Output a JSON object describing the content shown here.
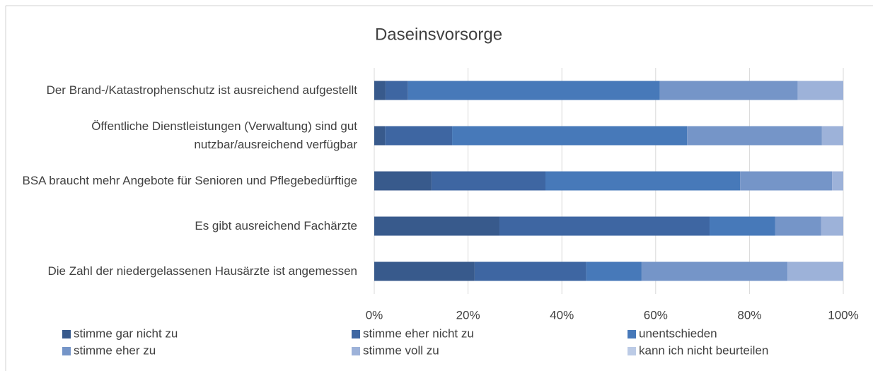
{
  "chart_data": {
    "type": "bar",
    "orientation": "horizontal",
    "stacked": true,
    "title": "Daseinsvorsorge",
    "categories": [
      "Der Brand-/Katastrophenschutz ist ausreichend aufgestellt",
      "Öffentliche Dienstleistungen (Verwaltung) sind gut nutzbar/ausreichend verfügbar",
      "BSA braucht mehr Angebote für Senioren und Pflegebedürftige",
      "Es gibt ausreichend Fachärzte",
      "Die Zahl der niedergelassenen Hausärzte ist angemessen"
    ],
    "series": [
      {
        "name": "stimme gar nicht zu",
        "color": "#385a8c",
        "values": [
          2.4,
          2.3,
          12.2,
          26.7,
          21.4
        ]
      },
      {
        "name": "stimme eher nicht zu",
        "color": "#3e66a2",
        "values": [
          4.8,
          14.3,
          24.3,
          44.8,
          23.8
        ]
      },
      {
        "name": "unentschieden",
        "color": "#4779b9",
        "values": [
          53.7,
          50.1,
          41.5,
          14.0,
          11.8
        ]
      },
      {
        "name": "stimme eher zu",
        "color": "#7595c8",
        "values": [
          29.4,
          28.7,
          19.6,
          9.8,
          31.1
        ]
      },
      {
        "name": "stimme voll zu",
        "color": "#9db2d9",
        "values": [
          9.7,
          4.6,
          2.4,
          4.7,
          11.9
        ]
      },
      {
        "name": "kann ich nicht beurteilen",
        "color": "#bccbe6",
        "values": [
          0,
          0,
          0,
          0,
          0
        ]
      }
    ],
    "xlim": [
      0,
      100
    ],
    "xticks": [
      {
        "value": 0,
        "label": "0%"
      },
      {
        "value": 20,
        "label": "20%"
      },
      {
        "value": 40,
        "label": "40%"
      },
      {
        "value": 60,
        "label": "60%"
      },
      {
        "value": 80,
        "label": "80%"
      },
      {
        "value": 100,
        "label": "100%"
      }
    ],
    "grid": true
  }
}
